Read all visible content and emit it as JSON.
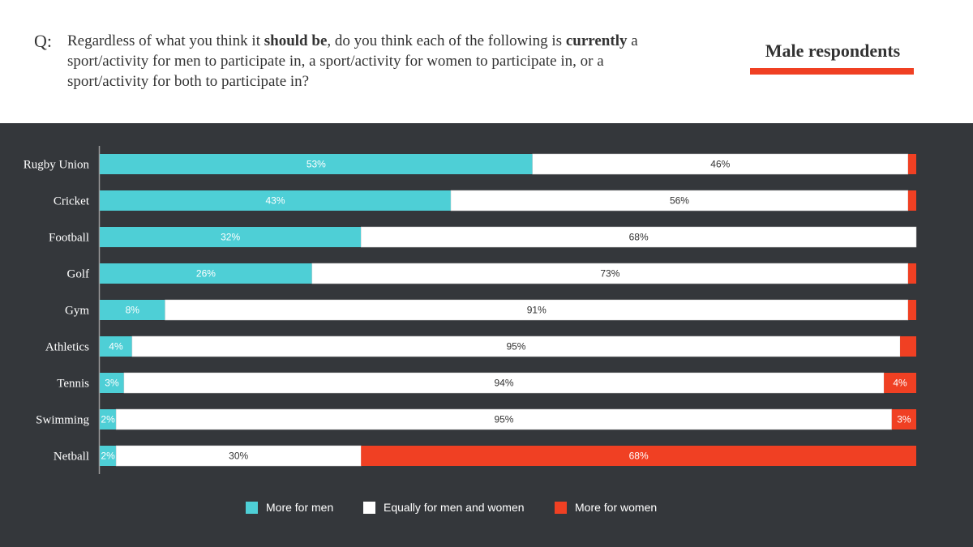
{
  "header": {
    "q_mark": "Q:",
    "question_parts": {
      "p1": "Regardless of what you think it ",
      "b1": "should be",
      "p2": ", do you think each of the following is ",
      "b2": "currently",
      "p3": " a sport/activity for men to participate in, a sport/activity for women to participate in, or a sport/activity for both to participate in?"
    },
    "respondents_title": "Male respondents"
  },
  "colors": {
    "men": "#4ecfd6",
    "equal": "#ffffff",
    "women": "#f04023",
    "background": "#34373b",
    "accent": "#f04023"
  },
  "chart_data": {
    "type": "bar",
    "orientation": "horizontal",
    "stacked": true,
    "title": "Male respondents",
    "xlabel": "",
    "ylabel": "",
    "xlim": [
      0,
      100
    ],
    "grid": false,
    "legend_position": "bottom",
    "categories": [
      "Rugby Union",
      "Cricket",
      "Football",
      "Golf",
      "Gym",
      "Athletics",
      "Tennis",
      "Swimming",
      "Netball"
    ],
    "series": [
      {
        "name": "More for men",
        "color": "#4ecfd6",
        "values": [
          53,
          43,
          32,
          26,
          8,
          4,
          3,
          2,
          2
        ],
        "labels": [
          "53%",
          "43%",
          "32%",
          "26%",
          "8%",
          "4%",
          "3%",
          "2%",
          "2%"
        ]
      },
      {
        "name": "Equally for men and women",
        "color": "#ffffff",
        "values": [
          46,
          56,
          68,
          73,
          91,
          95,
          94,
          95,
          30
        ],
        "labels": [
          "46%",
          "56%",
          "68%",
          "73%",
          "91%",
          "95%",
          "94%",
          "95%",
          "30%"
        ]
      },
      {
        "name": "More for women",
        "color": "#f04023",
        "values": [
          1,
          1,
          0,
          1,
          1,
          2,
          4,
          3,
          68
        ],
        "labels": [
          "",
          "",
          "",
          "",
          "",
          "",
          "4%",
          "3%",
          "68%"
        ]
      }
    ]
  },
  "legend": [
    {
      "label": "More for men",
      "color": "#4ecfd6"
    },
    {
      "label": "Equally for men and women",
      "color": "#ffffff"
    },
    {
      "label": "More for women",
      "color": "#f04023"
    }
  ]
}
